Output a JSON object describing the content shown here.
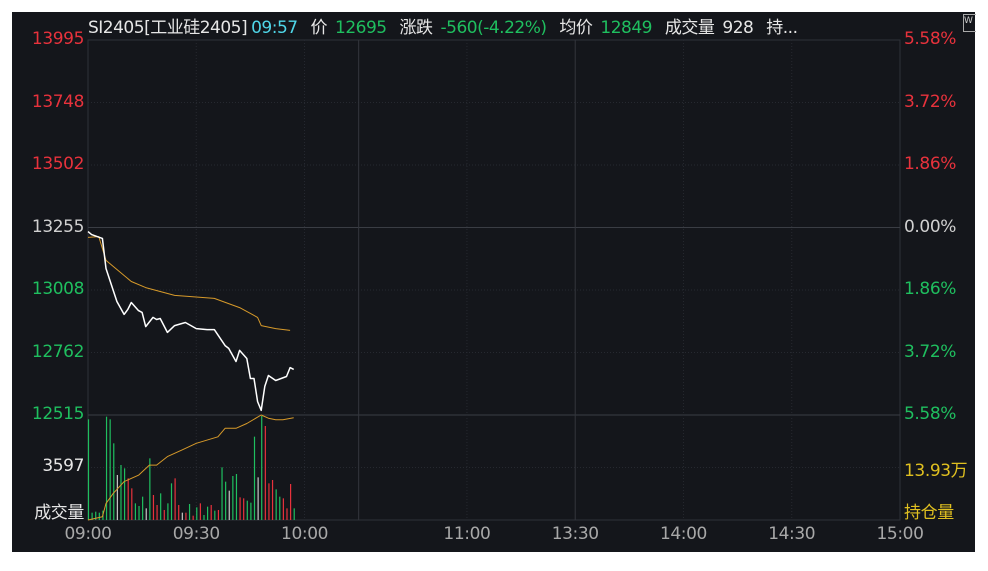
{
  "header": {
    "symbol": "SI2405[工业硅2405]",
    "time": "09:57",
    "price_label": "价",
    "price": "12695",
    "change_label": "涨跌",
    "change": "-560(-4.22%)",
    "avg_label": "均价",
    "avg": "12849",
    "volume_label": "成交量",
    "volume": "928",
    "oi_label": "持..."
  },
  "colors": {
    "up": "#e8323c",
    "down": "#1fbf5f",
    "neutral": "#c8c8c8",
    "price_line": "#ffffff",
    "avg_line": "#d79a2a",
    "oi_line": "#d79a2a",
    "label_yellow": "#e0c020",
    "time_cyan": "#4fd6e8",
    "background": "#14161b"
  },
  "icons": {
    "corner": "window-icon"
  },
  "chart_data": {
    "type": "line",
    "price_axis": {
      "left_ticks": [
        "13995",
        "13748",
        "13502",
        "13255",
        "13008",
        "12762",
        "12515"
      ],
      "right_ticks": [
        "5.58%",
        "3.72%",
        "1.86%",
        "0.00%",
        "1.86%",
        "3.72%",
        "5.58%"
      ],
      "range": [
        12515,
        13995
      ],
      "prev_close": 13255
    },
    "volume_axis": {
      "tick": "3597",
      "label": "成交量",
      "range": [
        0,
        7194
      ]
    },
    "oi_axis": {
      "tick": "13.93万",
      "label": "持仓量",
      "range": [
        13.8,
        14.06
      ]
    },
    "x_ticks": [
      "09:00",
      "09:30",
      "10:00",
      "11:00",
      "13:30",
      "14:00",
      "14:30",
      "15:00"
    ],
    "sessions": [
      [
        "09:00",
        "10:15"
      ],
      [
        "10:30",
        "11:30"
      ],
      [
        "13:30",
        "15:00"
      ]
    ],
    "price_series": [
      [
        "09:00",
        13239
      ],
      [
        "09:01",
        13227
      ],
      [
        "09:04",
        13212
      ],
      [
        "09:05",
        13093
      ],
      [
        "09:07",
        13006
      ],
      [
        "09:08",
        12963
      ],
      [
        "09:10",
        12912
      ],
      [
        "09:11",
        12931
      ],
      [
        "09:12",
        12959
      ],
      [
        "09:14",
        12927
      ],
      [
        "09:15",
        12920
      ],
      [
        "09:16",
        12864
      ],
      [
        "09:18",
        12900
      ],
      [
        "09:19",
        12892
      ],
      [
        "09:20",
        12896
      ],
      [
        "09:22",
        12841
      ],
      [
        "09:24",
        12868
      ],
      [
        "09:27",
        12880
      ],
      [
        "09:30",
        12856
      ],
      [
        "09:33",
        12852
      ],
      [
        "09:35",
        12852
      ],
      [
        "09:38",
        12789
      ],
      [
        "09:39",
        12778
      ],
      [
        "09:41",
        12726
      ],
      [
        "09:42",
        12770
      ],
      [
        "09:44",
        12738
      ],
      [
        "09:45",
        12659
      ],
      [
        "09:46",
        12659
      ],
      [
        "09:47",
        12568
      ],
      [
        "09:48",
        12533
      ],
      [
        "09:49",
        12628
      ],
      [
        "09:50",
        12671
      ],
      [
        "09:52",
        12651
      ],
      [
        "09:55",
        12667
      ],
      [
        "09:56",
        12702
      ],
      [
        "09:57",
        12695
      ]
    ],
    "avg_series": [
      [
        "09:00",
        13216
      ],
      [
        "09:03",
        13219
      ],
      [
        "09:05",
        13125
      ],
      [
        "09:12",
        13042
      ],
      [
        "09:16",
        13018
      ],
      [
        "09:24",
        12987
      ],
      [
        "09:35",
        12975
      ],
      [
        "09:42",
        12939
      ],
      [
        "09:47",
        12900
      ],
      [
        "09:48",
        12868
      ],
      [
        "09:52",
        12856
      ],
      [
        "09:56",
        12849
      ]
    ],
    "oi_series": [
      [
        "09:00",
        13.8
      ],
      [
        "09:04",
        13.808
      ],
      [
        "09:05",
        13.841
      ],
      [
        "09:07",
        13.866
      ],
      [
        "09:10",
        13.895
      ],
      [
        "09:14",
        13.911
      ],
      [
        "09:17",
        13.936
      ],
      [
        "09:19",
        13.936
      ],
      [
        "09:22",
        13.957
      ],
      [
        "09:26",
        13.973
      ],
      [
        "09:30",
        13.99
      ],
      [
        "09:36",
        14.006
      ],
      [
        "09:38",
        14.027
      ],
      [
        "09:41",
        14.027
      ],
      [
        "09:44",
        14.039
      ],
      [
        "09:48",
        14.06
      ],
      [
        "09:50",
        14.052
      ],
      [
        "09:52",
        14.048
      ],
      [
        "09:54",
        14.048
      ],
      [
        "09:57",
        14.053
      ]
    ],
    "volume_bars": [
      [
        6898,
        "d"
      ],
      [
        502,
        "d"
      ],
      [
        571,
        "d"
      ],
      [
        502,
        "d"
      ],
      [
        640,
        "d"
      ],
      [
        7080,
        "d"
      ],
      [
        6898,
        "d"
      ],
      [
        5253,
        "d"
      ],
      [
        3083,
        "n"
      ],
      [
        3769,
        "d"
      ],
      [
        3540,
        "d"
      ],
      [
        2855,
        "u"
      ],
      [
        2170,
        "u"
      ],
      [
        1142,
        "d"
      ],
      [
        959,
        "d"
      ],
      [
        1599,
        "d"
      ],
      [
        799,
        "n"
      ],
      [
        4225,
        "d"
      ],
      [
        1713,
        "u"
      ],
      [
        1028,
        "u"
      ],
      [
        1827,
        "d"
      ],
      [
        685,
        "u"
      ],
      [
        1142,
        "d"
      ],
      [
        2512,
        "d"
      ],
      [
        2855,
        "u"
      ],
      [
        1028,
        "u"
      ],
      [
        502,
        "n"
      ],
      [
        502,
        "u"
      ],
      [
        1096,
        "d"
      ],
      [
        297,
        "u"
      ],
      [
        868,
        "d"
      ],
      [
        1142,
        "u"
      ],
      [
        343,
        "d"
      ],
      [
        914,
        "d"
      ],
      [
        1028,
        "u"
      ],
      [
        640,
        "d"
      ],
      [
        685,
        "u"
      ],
      [
        3609,
        "d"
      ],
      [
        2627,
        "d"
      ],
      [
        2010,
        "n"
      ],
      [
        3015,
        "d"
      ],
      [
        3152,
        "d"
      ],
      [
        1553,
        "u"
      ],
      [
        1485,
        "u"
      ],
      [
        1325,
        "d"
      ],
      [
        1188,
        "d"
      ],
      [
        5710,
        "d"
      ],
      [
        2924,
        "n"
      ],
      [
        7126,
        "d"
      ],
      [
        6441,
        "u"
      ],
      [
        2512,
        "u"
      ],
      [
        2741,
        "u"
      ],
      [
        2101,
        "d"
      ],
      [
        1599,
        "d"
      ],
      [
        1485,
        "u"
      ],
      [
        799,
        "u"
      ],
      [
        2467,
        "u"
      ],
      [
        799,
        "d"
      ]
    ]
  }
}
